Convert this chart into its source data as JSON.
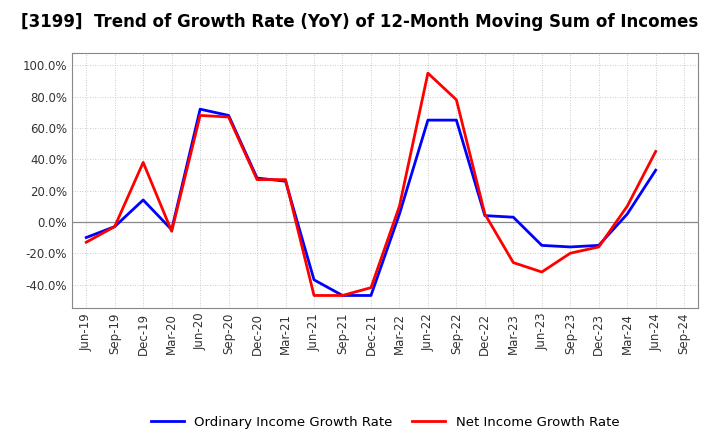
{
  "title": "[3199]  Trend of Growth Rate (YoY) of 12-Month Moving Sum of Incomes",
  "x_labels": [
    "Jun-19",
    "Sep-19",
    "Dec-19",
    "Mar-20",
    "Jun-20",
    "Sep-20",
    "Dec-20",
    "Mar-21",
    "Jun-21",
    "Sep-21",
    "Dec-21",
    "Mar-22",
    "Jun-22",
    "Sep-22",
    "Dec-22",
    "Mar-23",
    "Jun-23",
    "Sep-23",
    "Dec-23",
    "Mar-24",
    "Jun-24",
    "Sep-24"
  ],
  "ordinary_income": [
    -10,
    -3,
    14,
    -5,
    72,
    68,
    28,
    26,
    -37,
    -47,
    -47,
    5,
    65,
    65,
    4,
    3,
    -15,
    -16,
    -15,
    5,
    33,
    null
  ],
  "net_income": [
    -13,
    -3,
    38,
    -6,
    68,
    67,
    27,
    27,
    -47,
    -47,
    -42,
    10,
    95,
    78,
    5,
    -26,
    -32,
    -20,
    -16,
    10,
    45,
    null
  ],
  "ordinary_color": "#0000ff",
  "net_color": "#ff0000",
  "ylim": [
    -55,
    108
  ],
  "yticks": [
    -40,
    -20,
    0,
    20,
    40,
    60,
    80,
    100
  ],
  "background_color": "#ffffff",
  "grid_color": "#bbbbbb",
  "legend_ordinary": "Ordinary Income Growth Rate",
  "legend_net": "Net Income Growth Rate",
  "title_fontsize": 12,
  "axis_fontsize": 8.5,
  "legend_fontsize": 9.5
}
